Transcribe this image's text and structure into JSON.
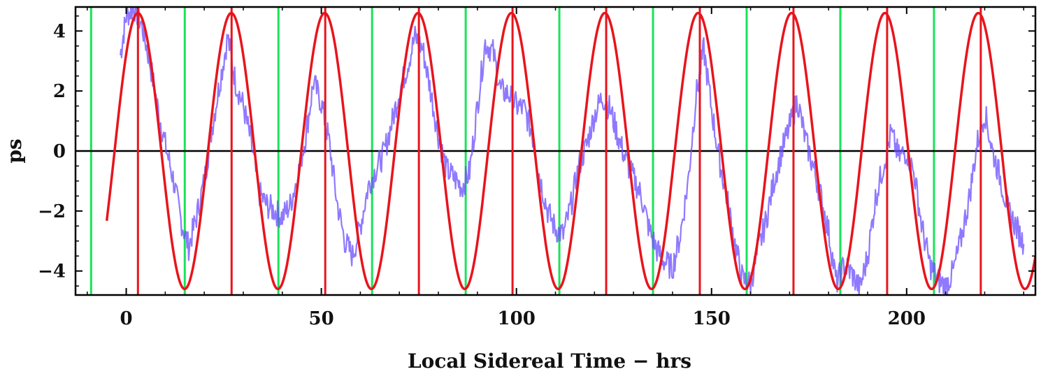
{
  "chart_data": {
    "type": "line",
    "title": "",
    "xlabel": "Local Sidereal Time − hrs",
    "ylabel": "ps",
    "xlim": [
      -13,
      233
    ],
    "ylim": [
      -4.8,
      4.8
    ],
    "x_ticks": [
      0,
      50,
      100,
      150,
      200
    ],
    "x_tick_labels": [
      "0",
      "50",
      "100",
      "150",
      "200"
    ],
    "y_ticks": [
      -4,
      -2,
      0,
      2,
      4
    ],
    "y_tick_labels": [
      "−4",
      "−2",
      "0",
      "2",
      "4"
    ],
    "grid": false,
    "legend": "none",
    "colors": {
      "measured": "#6a4cff",
      "sinusoid": "#e8141c",
      "max_markers": "#e8141c",
      "min_markers": "#19e35a",
      "zero_line": "#000000",
      "frame": "#000000"
    },
    "sinusoid": {
      "amplitude": 4.6,
      "period_hours": 23.93,
      "peak_x": 3,
      "x_start": -5,
      "x_end": 233
    },
    "max_marker_x": [
      3,
      27,
      51,
      75,
      99,
      123,
      147,
      171,
      195,
      219
    ],
    "min_marker_x": [
      -9,
      15,
      39,
      63,
      87,
      111,
      135,
      159,
      183,
      207
    ],
    "series": [
      {
        "type": "line",
        "x": [
          -1.5,
          0,
          2,
          4,
          6,
          8,
          10,
          12,
          14,
          16,
          18,
          20,
          22,
          24,
          26,
          28,
          30,
          32,
          34,
          36,
          38,
          40,
          42,
          44,
          46,
          48,
          50,
          52,
          54,
          56,
          58,
          60,
          62,
          64,
          66,
          68,
          70,
          72,
          74,
          76,
          78,
          80,
          82,
          84,
          86,
          88,
          90,
          92,
          94,
          96,
          98,
          100,
          102,
          104,
          106,
          108,
          110,
          112,
          114,
          116,
          118,
          120,
          122,
          124,
          126,
          128,
          130,
          132,
          134,
          136,
          138,
          140,
          142,
          144,
          146,
          148,
          150,
          152,
          154,
          156,
          158,
          160,
          162,
          164,
          166,
          168,
          170,
          172,
          174,
          176,
          178,
          180,
          182,
          184,
          186,
          188,
          190,
          192,
          194,
          196,
          198,
          200,
          202,
          204,
          206,
          208,
          210,
          212,
          214,
          216,
          218,
          220,
          222,
          224,
          226,
          228,
          230
        ],
        "y": [
          3.2,
          4.5,
          4.8,
          4.2,
          3.0,
          1.5,
          0.2,
          -0.9,
          -2.3,
          -3.2,
          -2.2,
          -1.0,
          0.8,
          2.3,
          3.8,
          2.3,
          1.5,
          0.3,
          -1.4,
          -1.8,
          -2.0,
          -2.2,
          -1.8,
          -0.8,
          0.5,
          2.3,
          1.6,
          0.3,
          -1.7,
          -3.0,
          -3.5,
          -2.5,
          -1.2,
          -0.6,
          -0.1,
          0.9,
          2.0,
          2.8,
          3.8,
          3.4,
          2.0,
          0.5,
          -0.6,
          -0.9,
          -1.2,
          -0.7,
          1.5,
          3.6,
          3.3,
          2.0,
          1.9,
          1.5,
          1.4,
          0.6,
          -0.9,
          -2.0,
          -2.6,
          -2.8,
          -1.8,
          -0.5,
          0.2,
          1.2,
          1.8,
          1.4,
          0.5,
          -0.3,
          -0.9,
          -1.5,
          -2.6,
          -3.3,
          -3.7,
          -3.9,
          -2.8,
          -1.0,
          1.8,
          3.4,
          1.4,
          -0.3,
          -1.6,
          -3.1,
          -4.3,
          -4.4,
          -3.3,
          -2.3,
          -1.0,
          0.0,
          0.8,
          1.7,
          0.4,
          -0.5,
          -1.5,
          -2.7,
          -4.4,
          -3.8,
          -4.1,
          -4.6,
          -3.5,
          -1.6,
          -0.5,
          0.6,
          -0.2,
          0.0,
          -0.8,
          -2.6,
          -3.8,
          -4.3,
          -4.5,
          -4.0,
          -2.9,
          -1.6,
          0.2,
          1.3,
          0.0,
          -0.9,
          -2.0,
          -2.5,
          -3.1
        ]
      }
    ]
  }
}
